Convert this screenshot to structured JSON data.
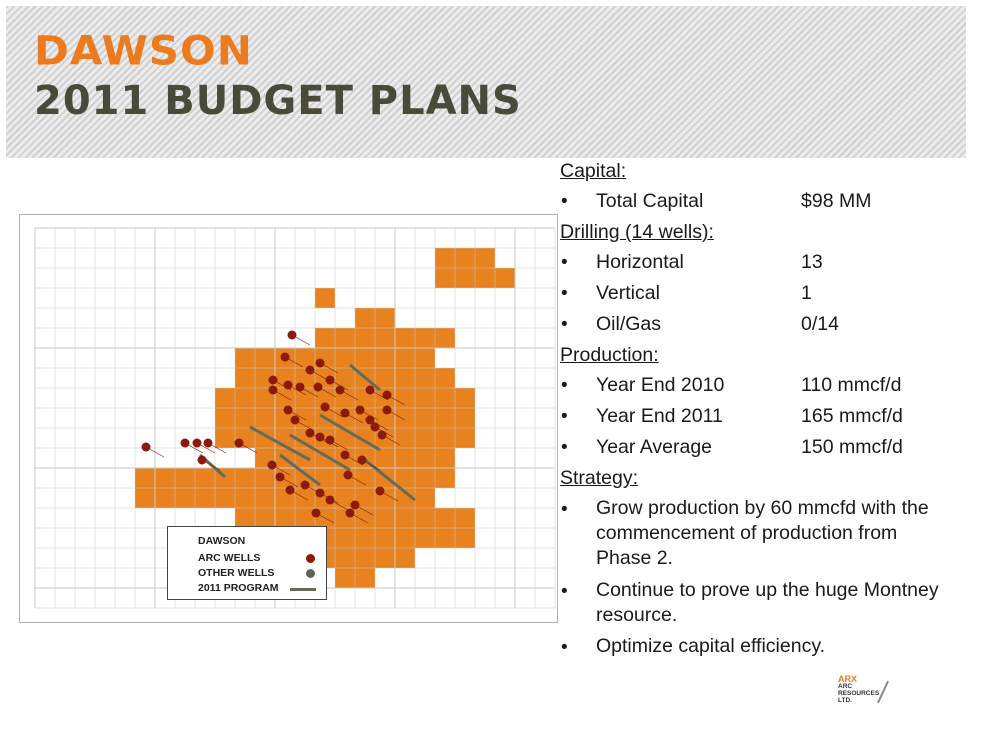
{
  "title": {
    "line1": "DAWSON",
    "line2": "2011 BUDGET PLANS"
  },
  "map": {
    "legend": {
      "title": "DAWSON",
      "arc_wells": "ARC WELLS",
      "other_wells": "OTHER WELLS",
      "program": "2011 PROGRAM"
    },
    "colors": {
      "land": "#e8821e",
      "arc_well": "#8b1a0a",
      "other_well": "#5f6650",
      "program": "#656b5a",
      "grid": "#c8c8c8"
    }
  },
  "sections": {
    "capital": {
      "heading": "Capital:",
      "items": [
        {
          "label": "Total Capital",
          "value": "$98 MM"
        }
      ]
    },
    "drilling": {
      "heading": "Drilling (14 wells):",
      "items": [
        {
          "label": "Horizontal",
          "value": "13"
        },
        {
          "label": "Vertical",
          "value": "1"
        },
        {
          "label": "Oil/Gas",
          "value": "0/14"
        }
      ]
    },
    "production": {
      "heading": "Production:",
      "items": [
        {
          "label": "Year End 2010",
          "value": "110 mmcf/d"
        },
        {
          "label": "Year End 2011",
          "value": "165 mmcf/d"
        },
        {
          "label": "Year Average",
          "value": "150 mmcf/d"
        }
      ]
    },
    "strategy": {
      "heading": "Strategy:",
      "items": [
        "Grow production by 60 mmcfd with the commencement of production from Phase 2.",
        "Continue to prove up the huge Montney resource.",
        "Optimize capital efficiency."
      ]
    }
  },
  "bullet": "•",
  "logo": {
    "name": "ARX",
    "sub": "ARC RESOURCES LTD."
  }
}
